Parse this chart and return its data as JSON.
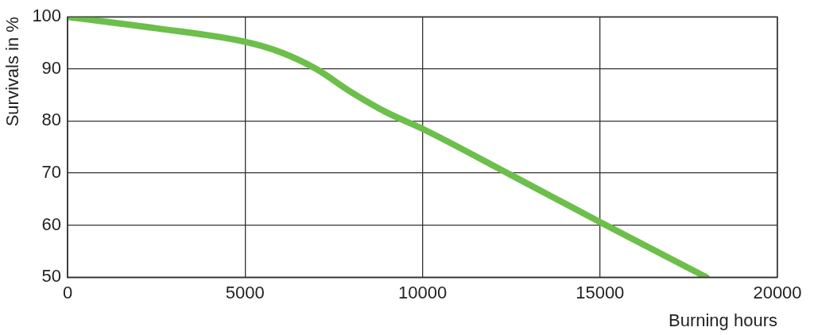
{
  "chart_data": {
    "type": "line",
    "xlabel": "Burning hours",
    "ylabel": "Survivals in %",
    "x": [
      0,
      2500,
      5000,
      6000,
      7000,
      8000,
      9000,
      10000,
      12500,
      15000,
      18000
    ],
    "series": [
      {
        "color": "#6cbf4a",
        "values": [
          100,
          97.8,
          95.2,
          93.2,
          90,
          85.5,
          81.6,
          78.5,
          69.6,
          60.6,
          50
        ]
      }
    ],
    "xlim": [
      0,
      20000
    ],
    "xticks": [
      0,
      5000,
      10000,
      15000,
      20000
    ],
    "ylim": [
      50,
      100
    ],
    "yticks": [
      50,
      60,
      70,
      80,
      90,
      100
    ],
    "grid": true,
    "legend": false,
    "marker": "none",
    "line_style": "solid"
  }
}
